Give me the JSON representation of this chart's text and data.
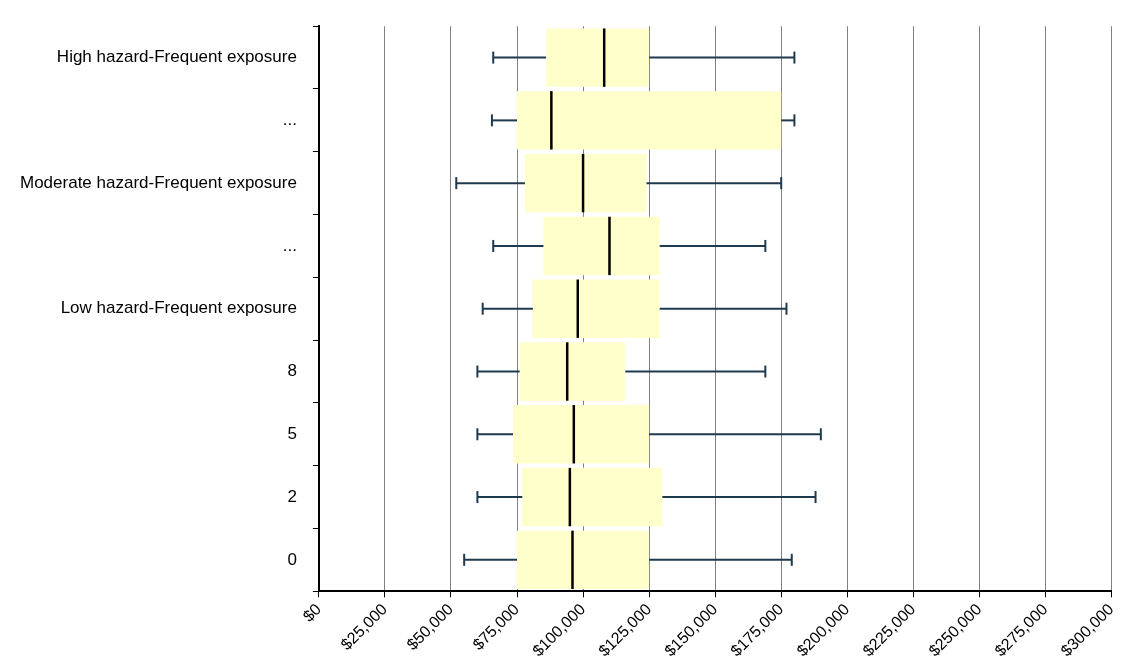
{
  "chart_data": {
    "type": "box",
    "orientation": "horizontal",
    "grid": "x",
    "categories": [
      "High hazard-Frequent exposure",
      "...",
      "Moderate hazard-Frequent exposure",
      "...",
      "Low hazard-Frequent exposure",
      "8",
      "5",
      "2",
      "0"
    ],
    "series": [
      {
        "color": "#ffffcc",
        "boxes": [
          {
            "low": 66000,
            "q1": 86000,
            "median": 108000,
            "q3": 125000,
            "high": 180000
          },
          {
            "low": 65500,
            "q1": 75000,
            "median": 88000,
            "q3": 175000,
            "high": 180000
          },
          {
            "low": 52000,
            "q1": 78000,
            "median": 100000,
            "q3": 124000,
            "high": 175000
          },
          {
            "low": 66000,
            "q1": 85000,
            "median": 110000,
            "q3": 129000,
            "high": 169000
          },
          {
            "low": 62000,
            "q1": 81000,
            "median": 98000,
            "q3": 129000,
            "high": 177000
          },
          {
            "low": 60000,
            "q1": 76000,
            "median": 94000,
            "q3": 116000,
            "high": 169000
          },
          {
            "low": 60000,
            "q1": 73500,
            "median": 96500,
            "q3": 125000,
            "high": 190000
          },
          {
            "low": 60000,
            "q1": 77000,
            "median": 95000,
            "q3": 130000,
            "high": 188000
          },
          {
            "low": 55000,
            "q1": 75000,
            "median": 96000,
            "q3": 125000,
            "high": 179000
          }
        ]
      }
    ],
    "xlim": [
      0,
      300000
    ],
    "xticks": [
      {
        "value": 0,
        "label": "$0"
      },
      {
        "value": 25000,
        "label": "$25,000"
      },
      {
        "value": 50000,
        "label": "$50,000"
      },
      {
        "value": 75000,
        "label": "$75,000"
      },
      {
        "value": 100000,
        "label": "$100,000"
      },
      {
        "value": 125000,
        "label": "$125,000"
      },
      {
        "value": 150000,
        "label": "$150,000"
      },
      {
        "value": 175000,
        "label": "$175,000"
      },
      {
        "value": 200000,
        "label": "$200,000"
      },
      {
        "value": 225000,
        "label": "$225,000"
      },
      {
        "value": 250000,
        "label": "$250,000"
      },
      {
        "value": 275000,
        "label": "$275,000"
      },
      {
        "value": 300000,
        "label": "$300,000"
      }
    ]
  }
}
